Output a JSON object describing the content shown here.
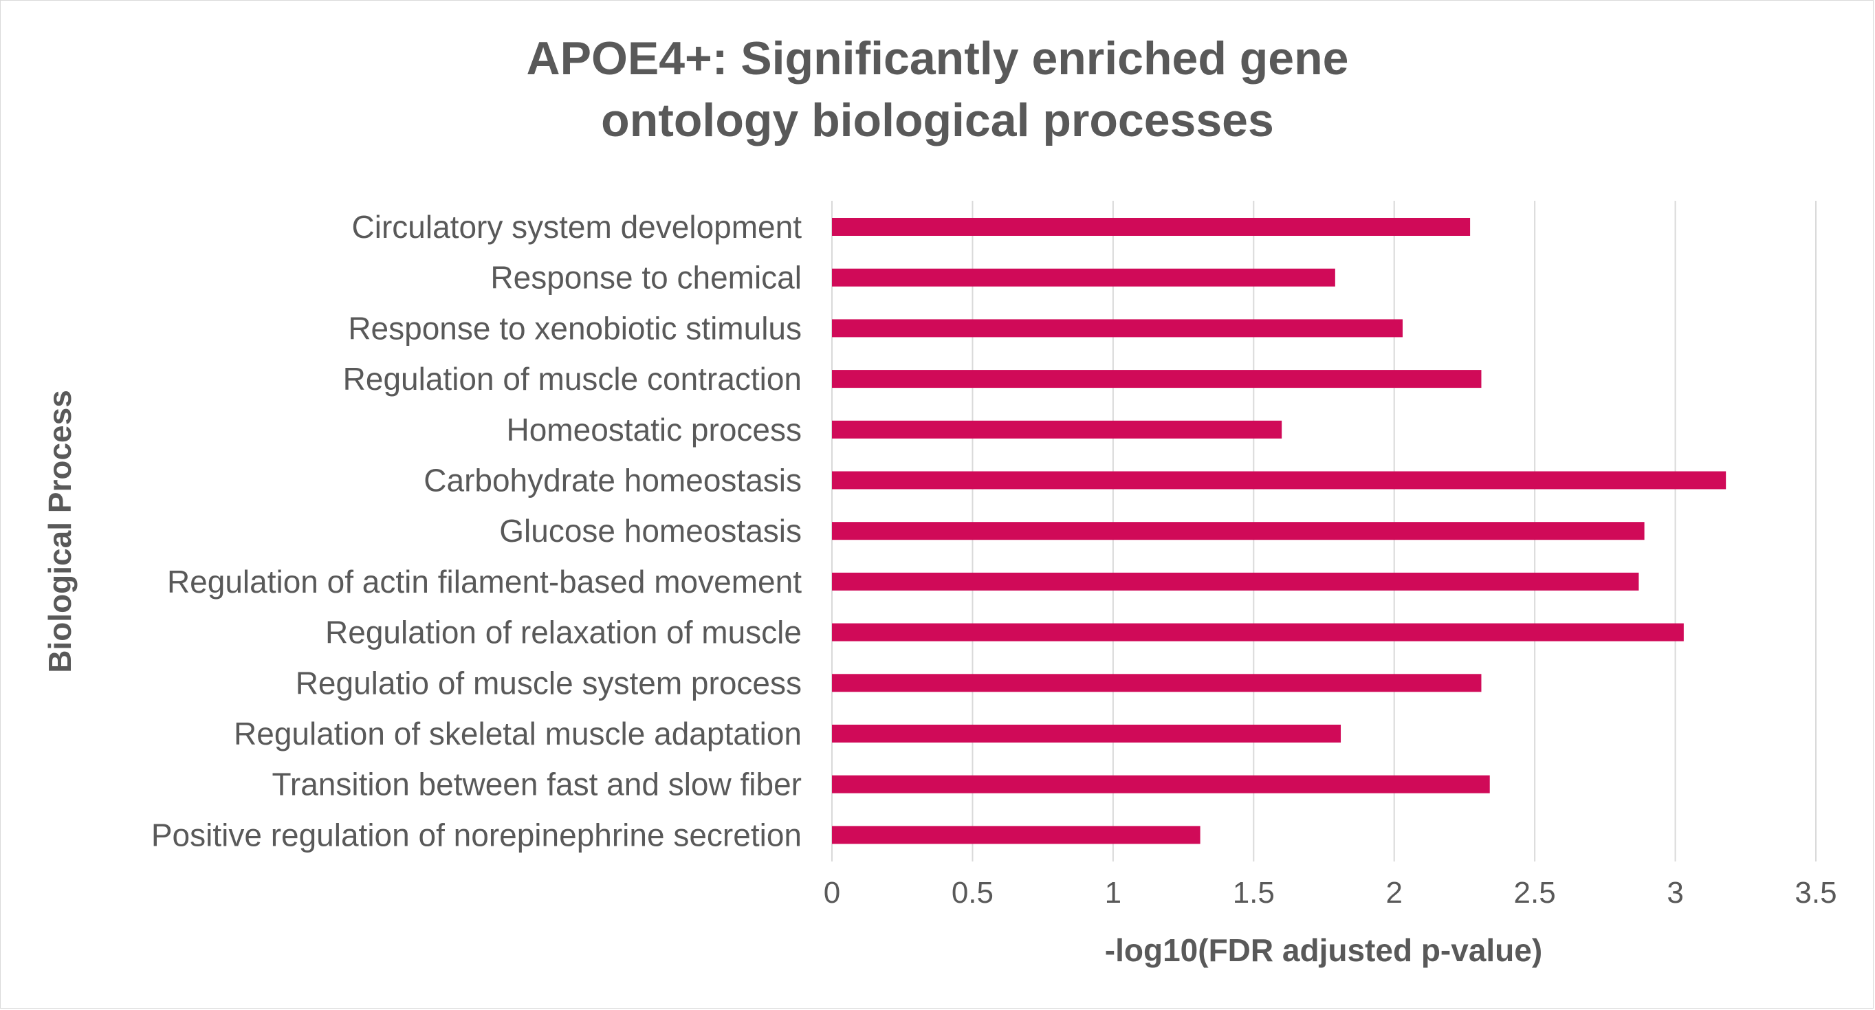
{
  "chart_data": {
    "type": "bar",
    "orientation": "horizontal",
    "title_lines": [
      "APOE4+: Significantly enriched gene",
      "ontology biological processes"
    ],
    "xlabel": "-log10(FDR adjusted p-value)",
    "ylabel": "Biological Process",
    "xlim": [
      0,
      3.5
    ],
    "xticks": [
      0,
      0.5,
      1,
      1.5,
      2,
      2.5,
      3,
      3.5
    ],
    "xtick_labels": [
      "0",
      "0.5",
      "1",
      "1.5",
      "2",
      "2.5",
      "3",
      "3.5"
    ],
    "grid": "vertical",
    "bar_color": "#d00a58",
    "grid_color": "#d9d9d9",
    "text_color": "#595959",
    "categories": [
      "Circulatory system development",
      "Response to chemical",
      "Response to xenobiotic stimulus",
      "Regulation of muscle contraction",
      "Homeostatic process",
      "Carbohydrate homeostasis",
      "Glucose homeostasis",
      "Regulation of actin filament-based movement",
      "Regulation of relaxation of muscle",
      "Regulatio of muscle system process",
      "Regulation of skeletal muscle adaptation",
      "Transition between fast and slow fiber",
      "Positive regulation of norepinephrine secretion"
    ],
    "values": [
      2.27,
      1.79,
      2.03,
      2.31,
      1.6,
      3.18,
      2.89,
      2.87,
      3.03,
      2.31,
      1.81,
      2.34,
      1.31
    ]
  }
}
